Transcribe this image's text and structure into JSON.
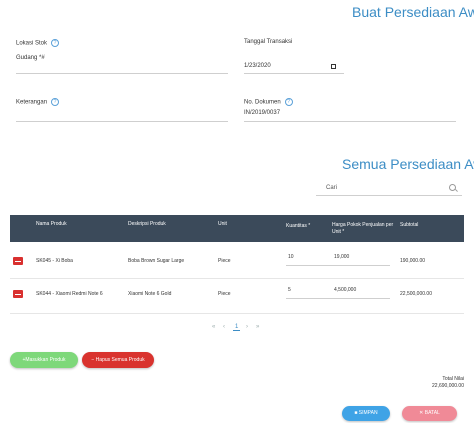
{
  "header": {
    "title": "Buat Persediaan Awal"
  },
  "form": {
    "lokasi_stok": {
      "label": "Lokasi Stok",
      "help": "?"
    },
    "gudang": {
      "label": "Gudang *#"
    },
    "tanggal": {
      "label": "Tanggal Transaksi",
      "value": "1/23/2020"
    },
    "keterangan": {
      "label": "Keterangan",
      "help": "?"
    },
    "no_dokumen": {
      "label": "No. Dokumen",
      "help": "?",
      "value": "IN/2019/0037"
    }
  },
  "list": {
    "title": "Semua Persediaan Awal",
    "search_placeholder": "Cari"
  },
  "table": {
    "headers": [
      "Nama Produk",
      "Deskripsi Produk",
      "Unit",
      "Kuantitas *",
      "Harga Pokok Penjualan per Unit *",
      "Subtotal"
    ],
    "rows": [
      {
        "nama": "SK045 - Xi Boba",
        "deskripsi": "Boba Brown Sugar Large",
        "unit": "Piece",
        "qty": "10",
        "harga": "19,000",
        "subtotal": "190,000.00"
      },
      {
        "nama": "SK044 - Xiaomi Redmi Note 6",
        "deskripsi": "Xiaomi Note 6 Gold",
        "unit": "Piece",
        "qty": "5",
        "harga": "4,500,000",
        "subtotal": "22,500,000.00"
      }
    ]
  },
  "pagination": {
    "first": "«",
    "prev": "‹",
    "current": "1",
    "next": "›",
    "last": "»"
  },
  "buttons": {
    "add": "+Masukkan Produk",
    "remove_all": "− Hapus Semua Produk",
    "save": "SIMPAN",
    "cancel": "✕ BATAL"
  },
  "total": {
    "label": "Total Nilai",
    "value": "22,690,000.00"
  }
}
